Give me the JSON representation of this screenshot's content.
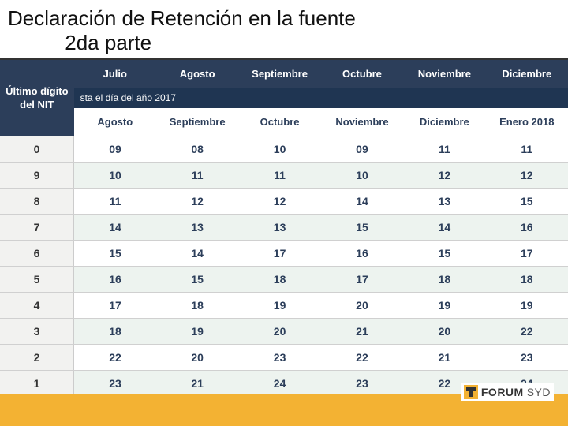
{
  "title_line1": "Declaración de Retención en la fuente",
  "title_line2": "2da parte",
  "table": {
    "nit_label": "Último dígito del NIT",
    "top_months": [
      "Julio",
      "Agosto",
      "Septiembre",
      "Octubre",
      "Noviembre",
      "Diciembre"
    ],
    "year_band": "sta el día del año 2017",
    "sub_months": [
      "Agosto",
      "Septiembre",
      "Octubre",
      "Noviembre",
      "Diciembre",
      "Enero 2018"
    ],
    "columns_count": 6,
    "rows": [
      {
        "digit": "0",
        "v": [
          "09",
          "08",
          "10",
          "09",
          "11",
          "11"
        ]
      },
      {
        "digit": "9",
        "v": [
          "10",
          "11",
          "11",
          "10",
          "12",
          "12"
        ]
      },
      {
        "digit": "8",
        "v": [
          "11",
          "12",
          "12",
          "14",
          "13",
          "15"
        ]
      },
      {
        "digit": "7",
        "v": [
          "14",
          "13",
          "13",
          "15",
          "14",
          "16"
        ]
      },
      {
        "digit": "6",
        "v": [
          "15",
          "14",
          "17",
          "16",
          "15",
          "17"
        ]
      },
      {
        "digit": "5",
        "v": [
          "16",
          "15",
          "18",
          "17",
          "18",
          "18"
        ]
      },
      {
        "digit": "4",
        "v": [
          "17",
          "18",
          "19",
          "20",
          "19",
          "19"
        ]
      },
      {
        "digit": "3",
        "v": [
          "18",
          "19",
          "20",
          "21",
          "20",
          "22"
        ]
      },
      {
        "digit": "2",
        "v": [
          "22",
          "20",
          "23",
          "22",
          "21",
          "23"
        ]
      },
      {
        "digit": "1",
        "v": [
          "23",
          "21",
          "24",
          "23",
          "22",
          "24"
        ]
      }
    ],
    "header_bg": "#2c3e5a",
    "band_bg": "#1f3552",
    "row_even_bg": "#edf3ef",
    "row_odd_bg": "#ffffff",
    "nit_col_bg": "#f2f2f0",
    "text_color": "#2c3e5a"
  },
  "footer": {
    "bar_color": "#f3b233",
    "logo_forum": "FORUM",
    "logo_syd": "SYD"
  }
}
